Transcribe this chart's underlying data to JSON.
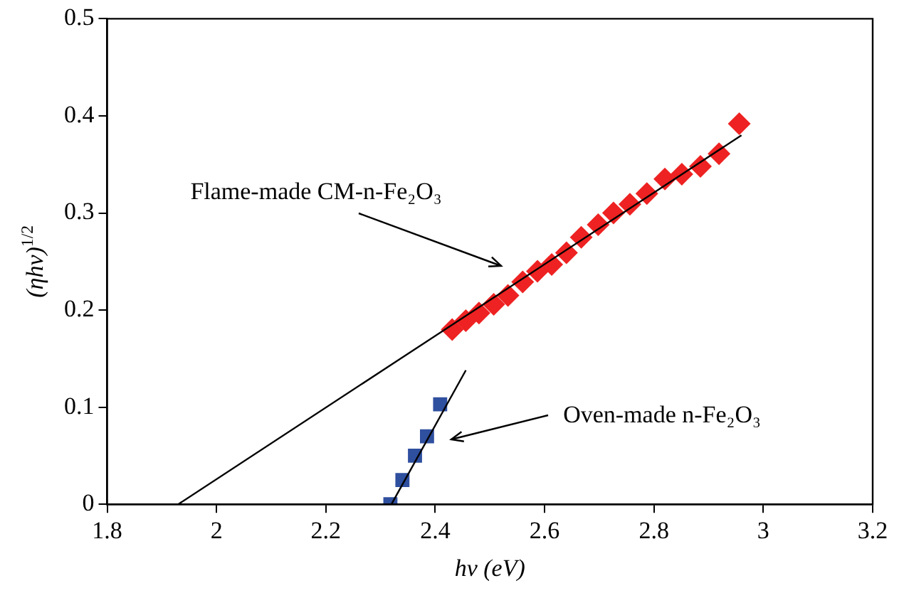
{
  "chart_data": {
    "type": "scatter",
    "xlabel": "hν (eV)",
    "ylabel": "(ηhν)$^{1/2}$",
    "xlim": [
      1.8,
      3.2
    ],
    "xticks": [
      1.8,
      2,
      2.2,
      2.4,
      2.6,
      2.8,
      3,
      3.2
    ],
    "ylim": [
      0,
      0.5
    ],
    "yticks": [
      0,
      0.1,
      0.2,
      0.3,
      0.4,
      0.5
    ],
    "grid": false,
    "legend": false,
    "series": [
      {
        "color": "#ee2222",
        "marker": "diamond",
        "x": [
          2.431,
          2.456,
          2.48,
          2.507,
          2.533,
          2.56,
          2.587,
          2.613,
          2.64,
          2.667,
          2.698,
          2.726,
          2.756,
          2.787,
          2.82,
          2.851,
          2.885,
          2.919,
          2.956
        ],
        "values": [
          0.18,
          0.189,
          0.197,
          0.206,
          0.215,
          0.229,
          0.24,
          0.247,
          0.259,
          0.275,
          0.288,
          0.3,
          0.309,
          0.32,
          0.335,
          0.34,
          0.348,
          0.361,
          0.392
        ]
      },
      {
        "color": "#2f4f9f",
        "marker": "square",
        "x": [
          2.318,
          2.34,
          2.363,
          2.385,
          2.409
        ],
        "values": [
          0,
          0.025,
          0.05,
          0.07,
          0.103
        ]
      },
      {
        "type": "line",
        "color": "#000000",
        "marker": "none",
        "x": [
          1.93,
          2.96
        ],
        "values": [
          0,
          0.38
        ]
      },
      {
        "type": "line",
        "color": "#000000",
        "marker": "none",
        "x": [
          2.32,
          2.456
        ],
        "values": [
          0,
          0.138
        ]
      }
    ],
    "annotations": [
      "Flame-made CM-n-Fe₂O₃",
      "Oven-made n-Fe₂O₃"
    ]
  }
}
